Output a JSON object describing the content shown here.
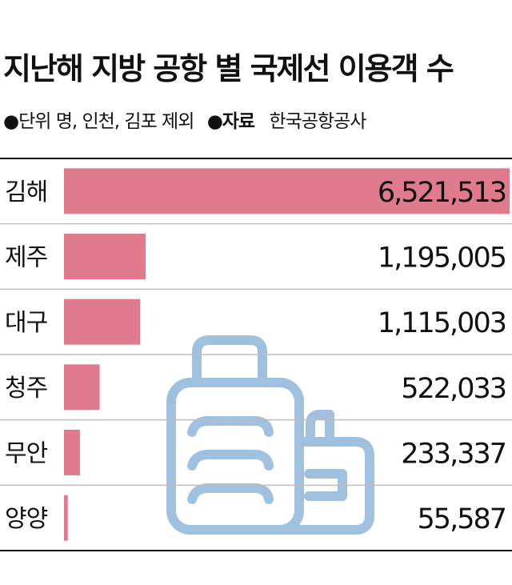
{
  "title": "지난해 지방 공항 별 국제선 이용객 수",
  "unit_note": "●단위 명, 인천, 김포 제외",
  "source_label": "●자료",
  "source_value": "한국공항공사",
  "colors": {
    "bar": "#e07b8e",
    "watermark": "#9fc0df",
    "rule": "#111111",
    "divider": "#bdbdbd"
  },
  "watermark_icon": "luggage-icon",
  "chart_data": {
    "type": "bar",
    "orientation": "horizontal",
    "categories": [
      "김해",
      "제주",
      "대구",
      "청주",
      "무안",
      "양양"
    ],
    "values": [
      6521513,
      1195005,
      1115003,
      522033,
      233337,
      55587
    ],
    "value_labels": [
      "6,521,513",
      "1,195,005",
      "1,115,003",
      "522,033",
      "233,337",
      "55,587"
    ],
    "title": "지난해 지방 공항 별 국제선 이용객 수",
    "xlabel": "",
    "ylabel": "",
    "xlim": [
      0,
      6521513
    ],
    "grid": false,
    "legend": "none"
  }
}
